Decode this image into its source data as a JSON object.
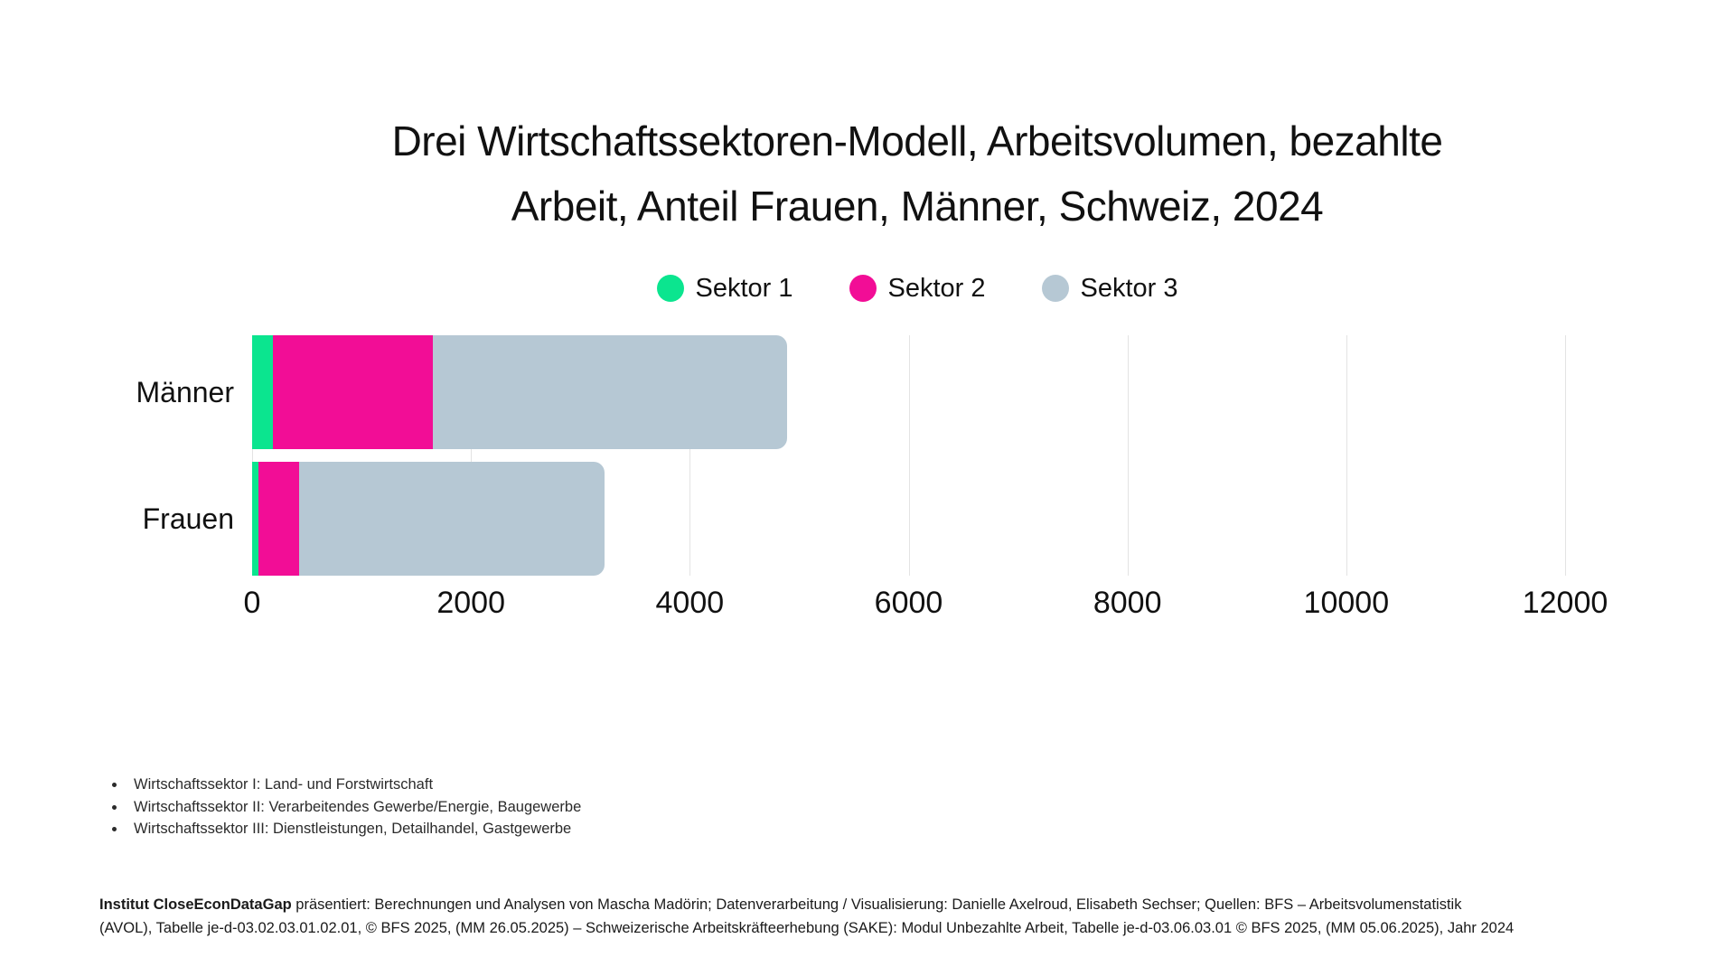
{
  "title": {
    "line1": "Drei Wirtschaftssektoren-Modell, Arbeitsvolumen, bezahlte",
    "line2": "Arbeit, Anteil Frauen, Männer, Schweiz, 2024"
  },
  "legend": {
    "items": [
      {
        "label": "Sektor 1",
        "color": "#0be58f"
      },
      {
        "label": "Sektor 2",
        "color": "#f20d96"
      },
      {
        "label": "Sektor 3",
        "color": "#b6c8d4"
      }
    ]
  },
  "chart_data": {
    "type": "bar",
    "orientation": "horizontal",
    "stacked": true,
    "title": "Drei Wirtschaftssektoren-Modell, Arbeitsvolumen, bezahlte Arbeit, Anteil Frauen, Männer, Schweiz, 2024",
    "categories": [
      "Männer",
      "Frauen"
    ],
    "series": [
      {
        "name": "Sektor 1",
        "color": "#0be58f",
        "values": [
          190,
          60
        ]
      },
      {
        "name": "Sektor 2",
        "color": "#f20d96",
        "values": [
          1460,
          370
        ]
      },
      {
        "name": "Sektor 3",
        "color": "#b6c8d4",
        "values": [
          3240,
          2790
        ]
      }
    ],
    "totals": [
      4890,
      3220
    ],
    "xlim": [
      0,
      12000
    ],
    "xticks": [
      0,
      2000,
      4000,
      6000,
      8000,
      10000,
      12000
    ],
    "grid": "vertical",
    "legend_position": "top-center"
  },
  "footnotes": [
    "Wirtschaftssektor I: Land- und Forstwirtschaft",
    "Wirtschaftssektor II: Verarbeitendes Gewerbe/Energie, Baugewerbe",
    "Wirtschaftssektor III: Dienstleistungen, Detailhandel, Gastgewerbe"
  ],
  "footer": {
    "bold": "Institut CloseEconDataGap",
    "line1": " präsentiert: Berechnungen und Analysen von Mascha Madörin; Datenverarbeitung / Visualisierung: Danielle Axelroud, Elisabeth Sechser; Quellen: BFS  – Arbeitsvolumenstatistik",
    "line2": "(AVOL), Tabelle je-d-03.02.03.01.02.01, © BFS 2025, (MM 26.05.2025) – Schweizerische Arbeitskräfteerhebung (SAKE): Modul Unbezahlte Arbeit, Tabelle je-d-03.06.03.01 © BFS 2025, (MM 05.06.2025), Jahr 2024"
  },
  "colors": {
    "sektor1": "#0be58f",
    "sektor2": "#f20d96",
    "sektor3": "#b6c8d4",
    "gridline": "#e3e3e3",
    "text": "#111111",
    "background": "#ffffff"
  }
}
